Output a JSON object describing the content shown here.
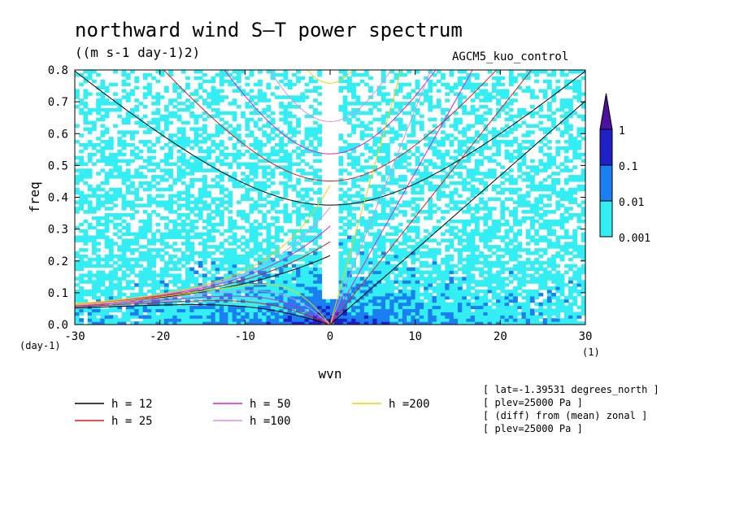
{
  "header": {
    "title": "northward wind S–T power spectrum",
    "subtitle": "((m s-1 day-1)2)",
    "dataset": "AGCM5_kuo_control"
  },
  "metadata_lines": [
    "[ lat=-1.39531 degrees_north ]",
    "[ plev=25000 Pa ]",
    "[ (diff) from (mean) zonal ]",
    "[ plev=25000 Pa ]"
  ],
  "chart_data": {
    "type": "heatmap",
    "title": "northward wind S–T power spectrum",
    "subtitle": "((m s-1 day-1)2)",
    "xlabel": "wvn",
    "ylabel": "freq",
    "x_unit_label": "(1)",
    "y_unit_label": "(day-1)",
    "xlim": [
      -30,
      30
    ],
    "ylim": [
      0,
      0.8
    ],
    "x_ticks": [
      -30,
      -20,
      -10,
      0,
      10,
      20,
      30
    ],
    "x_tick_labels": [
      "-30",
      "-20",
      "-10",
      "0",
      "10",
      "20",
      "30"
    ],
    "y_ticks": [
      0,
      0.1,
      0.2,
      0.3,
      0.4,
      0.5,
      0.6,
      0.7,
      0.8
    ],
    "y_tick_labels": [
      "0.0",
      "0.1",
      "0.2",
      "0.3",
      "0.4",
      "0.5",
      "0.6",
      "0.7",
      "0.8"
    ],
    "colorbar": {
      "levels": [
        0.001,
        0.01,
        0.1,
        1
      ],
      "labels": [
        "0.001",
        "0.01",
        "0.1",
        "1"
      ],
      "colors": [
        "#33eef3",
        "#1a7ff0",
        "#2020c8",
        "#4a129f"
      ],
      "extend": "max"
    },
    "dispersion_curves": [
      {
        "name": "h = 12",
        "h": 12,
        "color": "#000000"
      },
      {
        "name": "h = 25",
        "h": 25,
        "color": "#e01818"
      },
      {
        "name": "h = 50",
        "h": 50,
        "color": "#e020c8"
      },
      {
        "name": "h =100",
        "h": 100,
        "color": "#d890e0"
      },
      {
        "name": "h =200",
        "h": 200,
        "color": "#f2d000"
      }
    ],
    "legend_placement": "bottom-left"
  }
}
